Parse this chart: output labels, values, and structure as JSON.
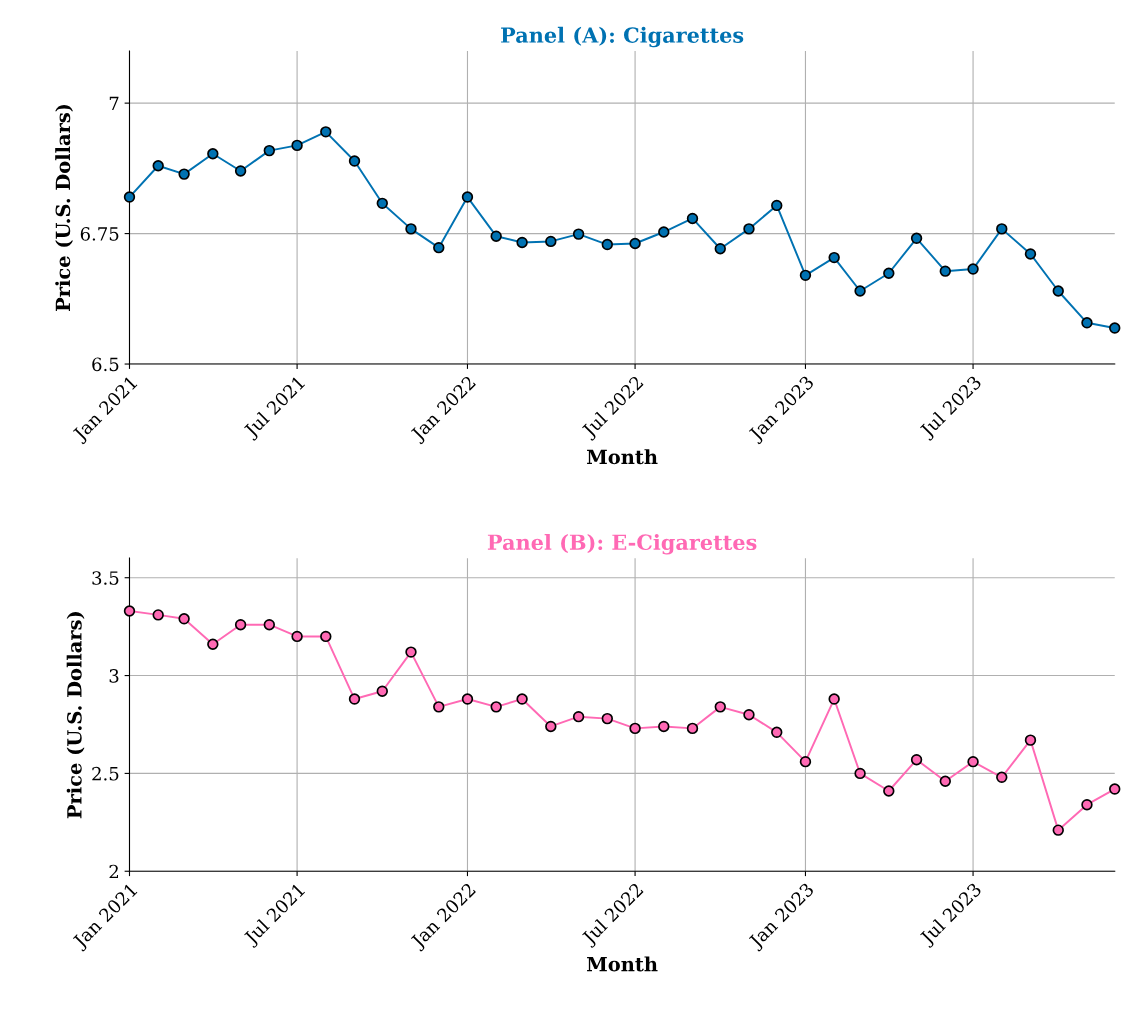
{
  "chart_data": [
    {
      "type": "line",
      "title": "Panel (A): Cigarettes",
      "xlabel": "Month",
      "ylabel": "Price (U.S. Dollars)",
      "x": [
        "2021-01",
        "2021-02",
        "2021-03",
        "2021-04",
        "2021-05",
        "2021-06",
        "2021-07",
        "2021-08",
        "2021-09",
        "2021-10",
        "2021-11",
        "2021-12",
        "2022-01",
        "2022-02",
        "2022-03",
        "2022-04",
        "2022-05",
        "2022-06",
        "2022-07",
        "2022-08",
        "2022-09",
        "2022-10",
        "2022-11",
        "2022-12",
        "2023-01",
        "2023-02",
        "2023-03",
        "2023-04",
        "2023-05",
        "2023-06",
        "2023-07",
        "2023-08",
        "2023-09",
        "2023-10",
        "2023-11",
        "2023-12"
      ],
      "series": [
        {
          "color": "#0072b2",
          "values": [
            6.82,
            6.88,
            6.864,
            6.903,
            6.87,
            6.909,
            6.919,
            6.945,
            6.889,
            6.808,
            6.759,
            6.723,
            6.82,
            6.745,
            6.733,
            6.735,
            6.749,
            6.729,
            6.731,
            6.753,
            6.779,
            6.721,
            6.759,
            6.804,
            6.67,
            6.704,
            6.64,
            6.674,
            6.741,
            6.678,
            6.682,
            6.759,
            6.711,
            6.64,
            6.579,
            6.569
          ]
        }
      ],
      "xlim": [
        "2021-01",
        "2023-12"
      ],
      "ylim": [
        6.5,
        7.1
      ],
      "yticks": [
        6.5,
        {
          "value": 6.75,
          "label": "6.75"
        },
        7
      ],
      "xticks": [
        {
          "value": "2021-01",
          "label": "Jan 2021"
        },
        {
          "value": "2021-07",
          "label": "Jul 2021"
        },
        {
          "value": "2022-01",
          "label": "Jan 2022"
        },
        {
          "value": "2022-07",
          "label": "Jul 2022"
        },
        {
          "value": "2023-01",
          "label": "Jan 2023"
        },
        {
          "value": "2023-07",
          "label": "Jul 2023"
        }
      ],
      "grid": true,
      "marker": "circle",
      "line_style": "solid",
      "legend": false
    },
    {
      "type": "line",
      "title": "Panel (B): E-Cigarettes",
      "xlabel": "Month",
      "ylabel": "Price (U.S. Dollars)",
      "x": [
        "2021-01",
        "2021-02",
        "2021-03",
        "2021-04",
        "2021-05",
        "2021-06",
        "2021-07",
        "2021-08",
        "2021-09",
        "2021-10",
        "2021-11",
        "2021-12",
        "2022-01",
        "2022-02",
        "2022-03",
        "2022-04",
        "2022-05",
        "2022-06",
        "2022-07",
        "2022-08",
        "2022-09",
        "2022-10",
        "2022-11",
        "2022-12",
        "2023-01",
        "2023-02",
        "2023-03",
        "2023-04",
        "2023-05",
        "2023-06",
        "2023-07",
        "2023-08",
        "2023-09",
        "2023-10",
        "2023-11",
        "2023-12"
      ],
      "series": [
        {
          "color": "#ff69b4",
          "values": [
            3.33,
            3.31,
            3.29,
            3.16,
            3.26,
            3.26,
            3.2,
            3.2,
            2.88,
            2.92,
            3.12,
            2.84,
            2.88,
            2.84,
            2.88,
            2.74,
            2.79,
            2.78,
            2.73,
            2.74,
            2.73,
            2.84,
            2.8,
            2.71,
            2.56,
            2.88,
            2.5,
            2.41,
            2.57,
            2.46,
            2.56,
            2.48,
            2.67,
            2.21,
            2.34,
            2.42
          ]
        }
      ],
      "xlim": [
        "2021-01",
        "2023-12"
      ],
      "ylim": [
        2,
        3.6
      ],
      "yticks": [
        2,
        2.5,
        3,
        3.5
      ],
      "xticks": [
        {
          "value": "2021-01",
          "label": "Jan 2021"
        },
        {
          "value": "2021-07",
          "label": "Jul 2021"
        },
        {
          "value": "2022-01",
          "label": "Jan 2022"
        },
        {
          "value": "2022-07",
          "label": "Jul 2022"
        },
        {
          "value": "2023-01",
          "label": "Jan 2023"
        },
        {
          "value": "2023-07",
          "label": "Jul 2023"
        }
      ],
      "grid": true,
      "marker": "circle",
      "line_style": "solid",
      "legend": false
    }
  ]
}
